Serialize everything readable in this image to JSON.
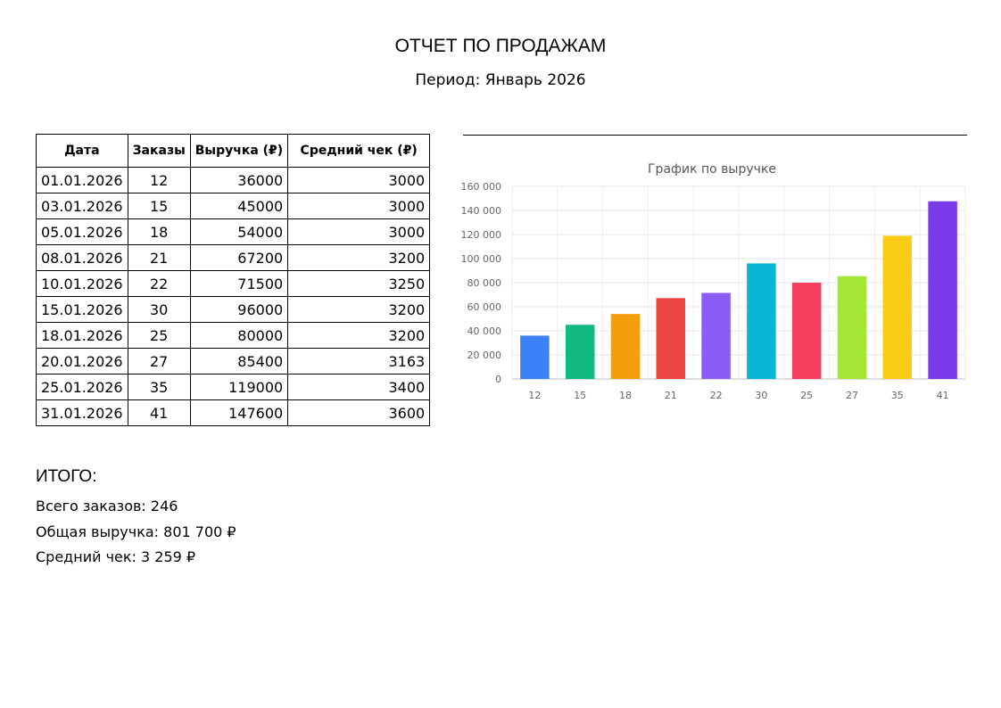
{
  "report": {
    "title": "ОТЧЕТ ПО ПРОДАЖАМ",
    "period": "Период: Январь 2026"
  },
  "table": {
    "headers": [
      "Дата",
      "Заказы",
      "Выручка (₽)",
      "Средний чек (₽)"
    ],
    "rows": [
      [
        "01.01.2026",
        "12",
        "36000",
        "3000"
      ],
      [
        "03.01.2026",
        "15",
        "45000",
        "3000"
      ],
      [
        "05.01.2026",
        "18",
        "54000",
        "3000"
      ],
      [
        "08.01.2026",
        "21",
        "67200",
        "3200"
      ],
      [
        "10.01.2026",
        "22",
        "71500",
        "3250"
      ],
      [
        "15.01.2026",
        "30",
        "96000",
        "3200"
      ],
      [
        "18.01.2026",
        "25",
        "80000",
        "3200"
      ],
      [
        "20.01.2026",
        "27",
        "85400",
        "3163"
      ],
      [
        "25.01.2026",
        "35",
        "119000",
        "3400"
      ],
      [
        "31.01.2026",
        "41",
        "147600",
        "3600"
      ]
    ]
  },
  "summary": {
    "title": "ИТОГО:",
    "total_orders": "Всего заказов: 246",
    "total_revenue": "Общая выручка: 801 700 ₽",
    "average_check": "Средний чек: 3 259 ₽"
  },
  "chart_data": {
    "type": "bar",
    "title": "График по выручке",
    "xlabel": "",
    "ylabel": "",
    "categories": [
      "12",
      "15",
      "18",
      "21",
      "22",
      "30",
      "25",
      "27",
      "35",
      "41"
    ],
    "values": [
      36000,
      45000,
      54000,
      67200,
      71500,
      96000,
      80000,
      85400,
      119000,
      147600
    ],
    "ylim": [
      0,
      160000
    ],
    "yticks": [
      0,
      20000,
      40000,
      60000,
      80000,
      100000,
      120000,
      140000,
      160000
    ],
    "ytick_labels": [
      "0",
      "20 000",
      "40 000",
      "60 000",
      "80 000",
      "100 000",
      "120 000",
      "140 000",
      "160 000"
    ],
    "colors": [
      "#3b82f6",
      "#10b981",
      "#f59e0b",
      "#ef4444",
      "#8b5cf6",
      "#06b6d4",
      "#f43f5e",
      "#a3e635",
      "#facc15",
      "#7c3aed"
    ],
    "grid": true,
    "legend": "none"
  }
}
